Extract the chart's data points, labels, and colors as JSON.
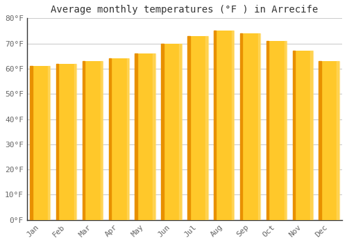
{
  "title": "Average monthly temperatures (°F ) in Arrecife",
  "months": [
    "Jan",
    "Feb",
    "Mar",
    "Apr",
    "May",
    "Jun",
    "Jul",
    "Aug",
    "Sep",
    "Oct",
    "Nov",
    "Dec"
  ],
  "values": [
    61,
    62,
    63,
    64,
    66,
    70,
    73,
    75,
    74,
    71,
    67,
    63
  ],
  "bar_color_top": "#FFC82A",
  "bar_color_bottom": "#F5A800",
  "bar_color_left_edge": "#E89000",
  "background_color": "#FFFFFF",
  "plot_bg_color": "#FFFFFF",
  "grid_color": "#CCCCCC",
  "ylim": [
    0,
    80
  ],
  "yticks": [
    0,
    10,
    20,
    30,
    40,
    50,
    60,
    70,
    80
  ],
  "title_fontsize": 10,
  "tick_fontsize": 8,
  "font_family": "monospace",
  "tick_color": "#666666",
  "spine_color": "#333333"
}
